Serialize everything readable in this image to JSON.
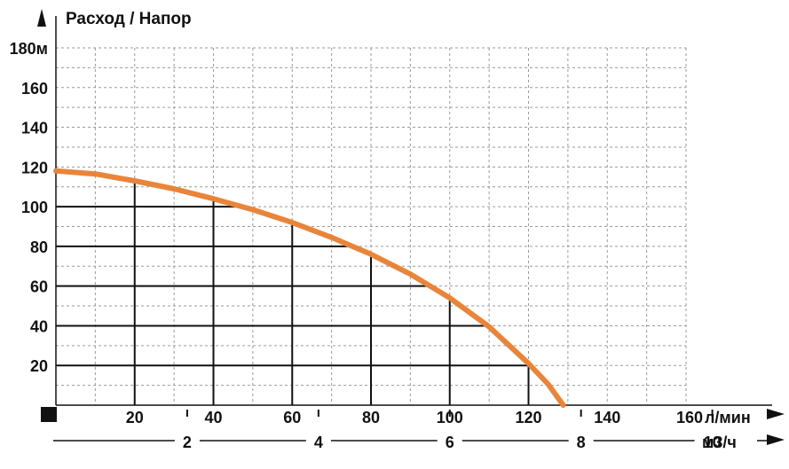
{
  "colors": {
    "curve": "#e8853a",
    "grid_dashed": "#9a9a9a",
    "grid_solid": "#111111",
    "text": "#111111"
  },
  "chart_data": {
    "type": "line",
    "title": "Расход / Напор",
    "xlabel": "л/мин",
    "ylabel": "",
    "secondary_xlabel": "м3/ч",
    "xlim": [
      0,
      160
    ],
    "ylim": [
      0,
      180
    ],
    "y_ticks": [
      "20",
      "40",
      "60",
      "80",
      "100",
      "120",
      "140",
      "160",
      "180м"
    ],
    "y_tick_values": [
      20,
      40,
      60,
      80,
      100,
      120,
      140,
      160,
      180
    ],
    "x_ticks": [
      "20",
      "40",
      "60",
      "80",
      "100",
      "120",
      "140",
      "160"
    ],
    "x_tick_values": [
      20,
      40,
      60,
      80,
      100,
      120,
      140,
      160
    ],
    "x2_ticks": [
      "2",
      "4",
      "6",
      "8",
      "10"
    ],
    "x2_tick_values": [
      2,
      4,
      6,
      8,
      10
    ],
    "grid": true,
    "series": [
      {
        "x": [
          0,
          10,
          20,
          30,
          40,
          50,
          60,
          70,
          80,
          90,
          100,
          110,
          120,
          125,
          128.8
        ],
        "values": [
          118,
          116.5,
          113,
          109,
          104,
          98.5,
          92,
          84.5,
          76,
          66,
          54,
          39.5,
          21,
          10.5,
          0
        ]
      }
    ]
  }
}
